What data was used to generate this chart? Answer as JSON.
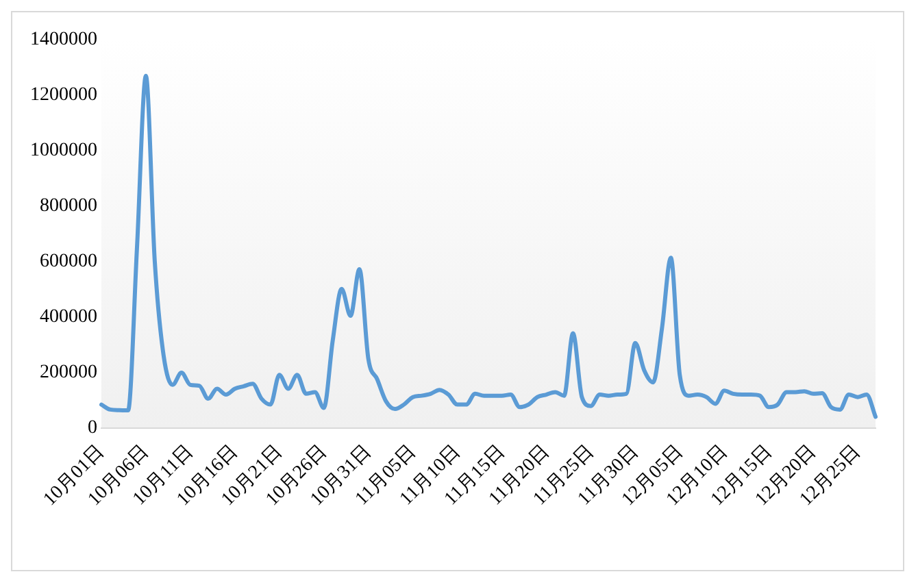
{
  "chart_data": {
    "type": "line",
    "categories": [
      "10月01日",
      null,
      null,
      null,
      null,
      "10月06日",
      null,
      null,
      null,
      null,
      "10月11日",
      null,
      null,
      null,
      null,
      "10月16日",
      null,
      null,
      null,
      null,
      "10月21日",
      null,
      null,
      null,
      null,
      "10月26日",
      null,
      null,
      null,
      null,
      "10月31日",
      null,
      null,
      null,
      null,
      "11月05日",
      null,
      null,
      null,
      null,
      "11月10日",
      null,
      null,
      null,
      null,
      "11月15日",
      null,
      null,
      null,
      null,
      "11月20日",
      null,
      null,
      null,
      null,
      "11月25日",
      null,
      null,
      null,
      null,
      "11月30日",
      null,
      null,
      null,
      null,
      "12月05日",
      null,
      null,
      null,
      null,
      "12月10日",
      null,
      null,
      null,
      null,
      "12月15日",
      null,
      null,
      null,
      null,
      "12月20日",
      null,
      null,
      null,
      null,
      "12月25日",
      null,
      null
    ],
    "series": [
      {
        "color": "#5b9bd5",
        "values": [
          85000,
          67000,
          65000,
          64000,
          650000,
          1270000,
          600000,
          260000,
          156000,
          200000,
          156000,
          153000,
          106000,
          142000,
          121000,
          142000,
          151000,
          160000,
          106000,
          85000,
          192000,
          142000,
          192000,
          124000,
          130000,
          73000,
          316000,
          502000,
          405000,
          573000,
          250000,
          176000,
          96000,
          69000,
          85000,
          112000,
          117000,
          124000,
          138000,
          121000,
          85000,
          85000,
          124000,
          117000,
          117000,
          117000,
          121000,
          76000,
          85000,
          112000,
          121000,
          130000,
          117000,
          342000,
          112000,
          80000,
          121000,
          117000,
          121000,
          124000,
          307000,
          209000,
          165000,
          360000,
          614000,
          192000,
          117000,
          121000,
          112000,
          88000,
          135000,
          124000,
          121000,
          121000,
          117000,
          76000,
          85000,
          130000,
          130000,
          133000,
          124000,
          126000,
          76000,
          67000,
          121000,
          112000,
          121000,
          41000
        ]
      }
    ],
    "ylim": [
      0,
      1400000
    ],
    "yticks": [
      0,
      200000,
      400000,
      600000,
      800000,
      1000000,
      1200000,
      1400000
    ],
    "grid": false,
    "legend": false,
    "marker": "none",
    "line_style": "solid"
  }
}
